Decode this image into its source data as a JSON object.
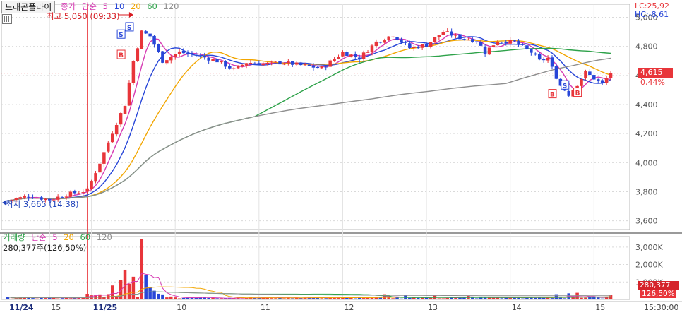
{
  "stock": {
    "name": "드래곤플라이"
  },
  "legend": {
    "price_label": "종가",
    "ma_type": "단순",
    "periods": [
      "5",
      "10",
      "20",
      "60",
      "120"
    ],
    "period_colors": [
      "#d63ab3",
      "#2746d8",
      "#f2a600",
      "#2ea24a",
      "#8e8e8e"
    ]
  },
  "volume_legend": {
    "label": "거래량",
    "ma_type": "단순",
    "periods": [
      "5",
      "20",
      "60",
      "120"
    ],
    "period_colors": [
      "#d63ab3",
      "#f2a600",
      "#2ea24a",
      "#8e8e8e"
    ],
    "value_text": "280,377주(126,50%)"
  },
  "lc_text": "LC:25,92",
  "hc_text": "HC:-8,61",
  "annotations": {
    "max_text": "최고 5,050 (09:33)",
    "min_text": "최저 3,665 (14:38)",
    "markers": [
      "S",
      "S",
      "B",
      "B",
      "S",
      "B"
    ]
  },
  "price_badge": {
    "value": "4,615",
    "change": "0,44%"
  },
  "volume_badge": {
    "value": "280,377",
    "pct": "126,50%"
  },
  "colors": {
    "up": "#e8353a",
    "down": "#2746d8",
    "grid": "#d9d9d9"
  },
  "chart_data": [
    {
      "type": "candlestick",
      "title": "",
      "y_ticks": [
        "5,000",
        "4,800",
        "4,600",
        "4,400",
        "4,200",
        "4,000",
        "3,800",
        "3,600"
      ],
      "y_tick_values": [
        5000,
        4800,
        4600,
        4400,
        4200,
        4000,
        3800,
        3600
      ],
      "ylim": [
        3540,
        5090
      ],
      "x_labels": [
        "11/24",
        "15",
        "11/25",
        "10",
        "11",
        "12",
        "13",
        "14",
        "15",
        "15:30:00"
      ],
      "x_label_index": [
        0,
        10,
        20,
        40,
        60,
        80,
        100,
        120,
        140,
        155
      ],
      "session_break_index": 19,
      "time_label": "15:30:00",
      "total_bars": 145,
      "anchors": [
        [
          0,
          3740
        ],
        [
          5,
          3770
        ],
        [
          10,
          3745
        ],
        [
          14,
          3780
        ],
        [
          19,
          3810
        ],
        [
          22,
          4000
        ],
        [
          25,
          4210
        ],
        [
          28,
          4400
        ],
        [
          30,
          4700
        ],
        [
          32,
          4900
        ],
        [
          34,
          4870
        ],
        [
          37,
          4700
        ],
        [
          41,
          4760
        ],
        [
          45,
          4740
        ],
        [
          50,
          4700
        ],
        [
          54,
          4640
        ],
        [
          57,
          4690
        ],
        [
          62,
          4680
        ],
        [
          66,
          4690
        ],
        [
          70,
          4670
        ],
        [
          75,
          4650
        ],
        [
          80,
          4760
        ],
        [
          84,
          4720
        ],
        [
          88,
          4830
        ],
        [
          92,
          4880
        ],
        [
          96,
          4790
        ],
        [
          100,
          4810
        ],
        [
          104,
          4900
        ],
        [
          108,
          4860
        ],
        [
          112,
          4840
        ],
        [
          114,
          4760
        ],
        [
          117,
          4840
        ],
        [
          121,
          4830
        ],
        [
          125,
          4760
        ],
        [
          127,
          4700
        ],
        [
          129,
          4720
        ],
        [
          130,
          4650
        ],
        [
          132,
          4530
        ],
        [
          134,
          4470
        ],
        [
          136,
          4540
        ],
        [
          138,
          4620
        ],
        [
          140,
          4580
        ],
        [
          142,
          4540
        ],
        [
          144,
          4615
        ]
      ],
      "ma_series": [
        {
          "name": "5",
          "color": "#d63ab3",
          "period": 5
        },
        {
          "name": "10",
          "color": "#2746d8",
          "period": 10
        },
        {
          "name": "20",
          "color": "#f2a600",
          "period": 20
        },
        {
          "name": "60",
          "color": "#2ea24a",
          "period": 60
        },
        {
          "name": "120",
          "color": "#8e8e8e",
          "period": 120
        }
      ],
      "last_close": 4615,
      "high": 5050,
      "low": 3665
    },
    {
      "type": "bar",
      "title": "",
      "y_ticks": [
        "3,000K",
        "2,000K",
        "1,000K"
      ],
      "y_tick_values": [
        3000,
        2000,
        1000
      ],
      "ylim": [
        0,
        3600
      ],
      "values_unit": "K shares",
      "spikes": [
        [
          25,
          800
        ],
        [
          27,
          1100
        ],
        [
          28,
          1700
        ],
        [
          29,
          900
        ],
        [
          30,
          1300
        ],
        [
          32,
          3450
        ],
        [
          33,
          1400
        ],
        [
          34,
          700
        ],
        [
          35,
          500
        ],
        [
          90,
          300
        ],
        [
          95,
          250
        ],
        [
          102,
          280
        ],
        [
          110,
          220
        ],
        [
          131,
          300
        ],
        [
          134,
          350
        ],
        [
          136,
          380
        ],
        [
          144,
          280
        ]
      ],
      "baseline_volume": 120
    }
  ]
}
